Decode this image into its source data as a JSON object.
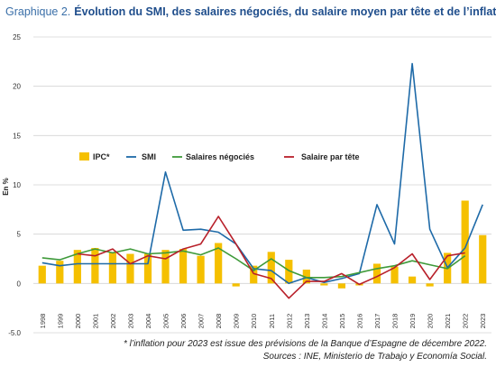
{
  "header": {
    "label": "Graphique 2.",
    "title": "Évolution du SMI, des salaires négociés, du salaire moyen par tête et de l’inflation"
  },
  "footnotes": {
    "line1": "* l’inflation pour 2023 est issue des prévisions de la Banque d’Espagne de décembre 2022.",
    "line2": "Sources : INE, Ministerio de Trabajo y Economía Social."
  },
  "chart_data": {
    "type": "bar+line",
    "ylabel": "En %",
    "ylim": [
      -5,
      25
    ],
    "yticks": [
      -5,
      0,
      5,
      10,
      15,
      20,
      25
    ],
    "ytick_labels": [
      "-5.0",
      "0",
      "5",
      "10",
      "15",
      "20",
      "25"
    ],
    "grid": true,
    "legend_position": "inside-middle",
    "categories": [
      "1998",
      "1999",
      "2000",
      "2001",
      "2002",
      "2003",
      "2004",
      "2005",
      "2006",
      "2007",
      "2008",
      "2009",
      "2010",
      "2011",
      "2012",
      "2013",
      "2014",
      "2015",
      "2016",
      "2017",
      "2018",
      "2019",
      "2020",
      "2021",
      "2022",
      "2023"
    ],
    "bars": {
      "name": "IPC*",
      "color": "#f5c000",
      "values": [
        1.8,
        2.3,
        3.4,
        3.6,
        3.1,
        3.0,
        3.0,
        3.4,
        3.5,
        2.8,
        4.1,
        -0.3,
        1.8,
        3.2,
        2.4,
        1.4,
        -0.2,
        -0.5,
        -0.2,
        2.0,
        1.7,
        0.7,
        -0.3,
        3.1,
        8.4,
        4.9
      ]
    },
    "series": [
      {
        "name": "SMI",
        "color": "#1e6aa8",
        "values": [
          2.1,
          1.8,
          2.0,
          2.0,
          2.0,
          2.0,
          2.0,
          11.3,
          5.4,
          5.5,
          5.2,
          4.0,
          1.5,
          1.3,
          0.0,
          0.6,
          0.1,
          0.5,
          1.0,
          8.0,
          4.0,
          22.3,
          5.5,
          1.6,
          3.6,
          8.0
        ]
      },
      {
        "name": "Salaires négociés",
        "color": "#3f9a3a",
        "values": [
          2.6,
          2.4,
          3.0,
          3.5,
          3.1,
          3.5,
          3.0,
          3.1,
          3.3,
          2.9,
          3.6,
          2.5,
          1.3,
          2.5,
          1.3,
          0.6,
          0.6,
          0.7,
          1.1,
          1.5,
          1.8,
          2.3,
          1.9,
          1.5,
          2.8,
          null
        ]
      },
      {
        "name": "Salaire par tête",
        "color": "#b8202a",
        "values": [
          null,
          null,
          3.0,
          2.8,
          3.5,
          2.0,
          2.8,
          2.5,
          3.5,
          4.0,
          6.8,
          4.0,
          1.0,
          0.5,
          -1.5,
          0.2,
          0.2,
          1.0,
          -0.1,
          0.7,
          1.6,
          3.0,
          0.4,
          2.8,
          3.1,
          null
        ]
      }
    ]
  }
}
